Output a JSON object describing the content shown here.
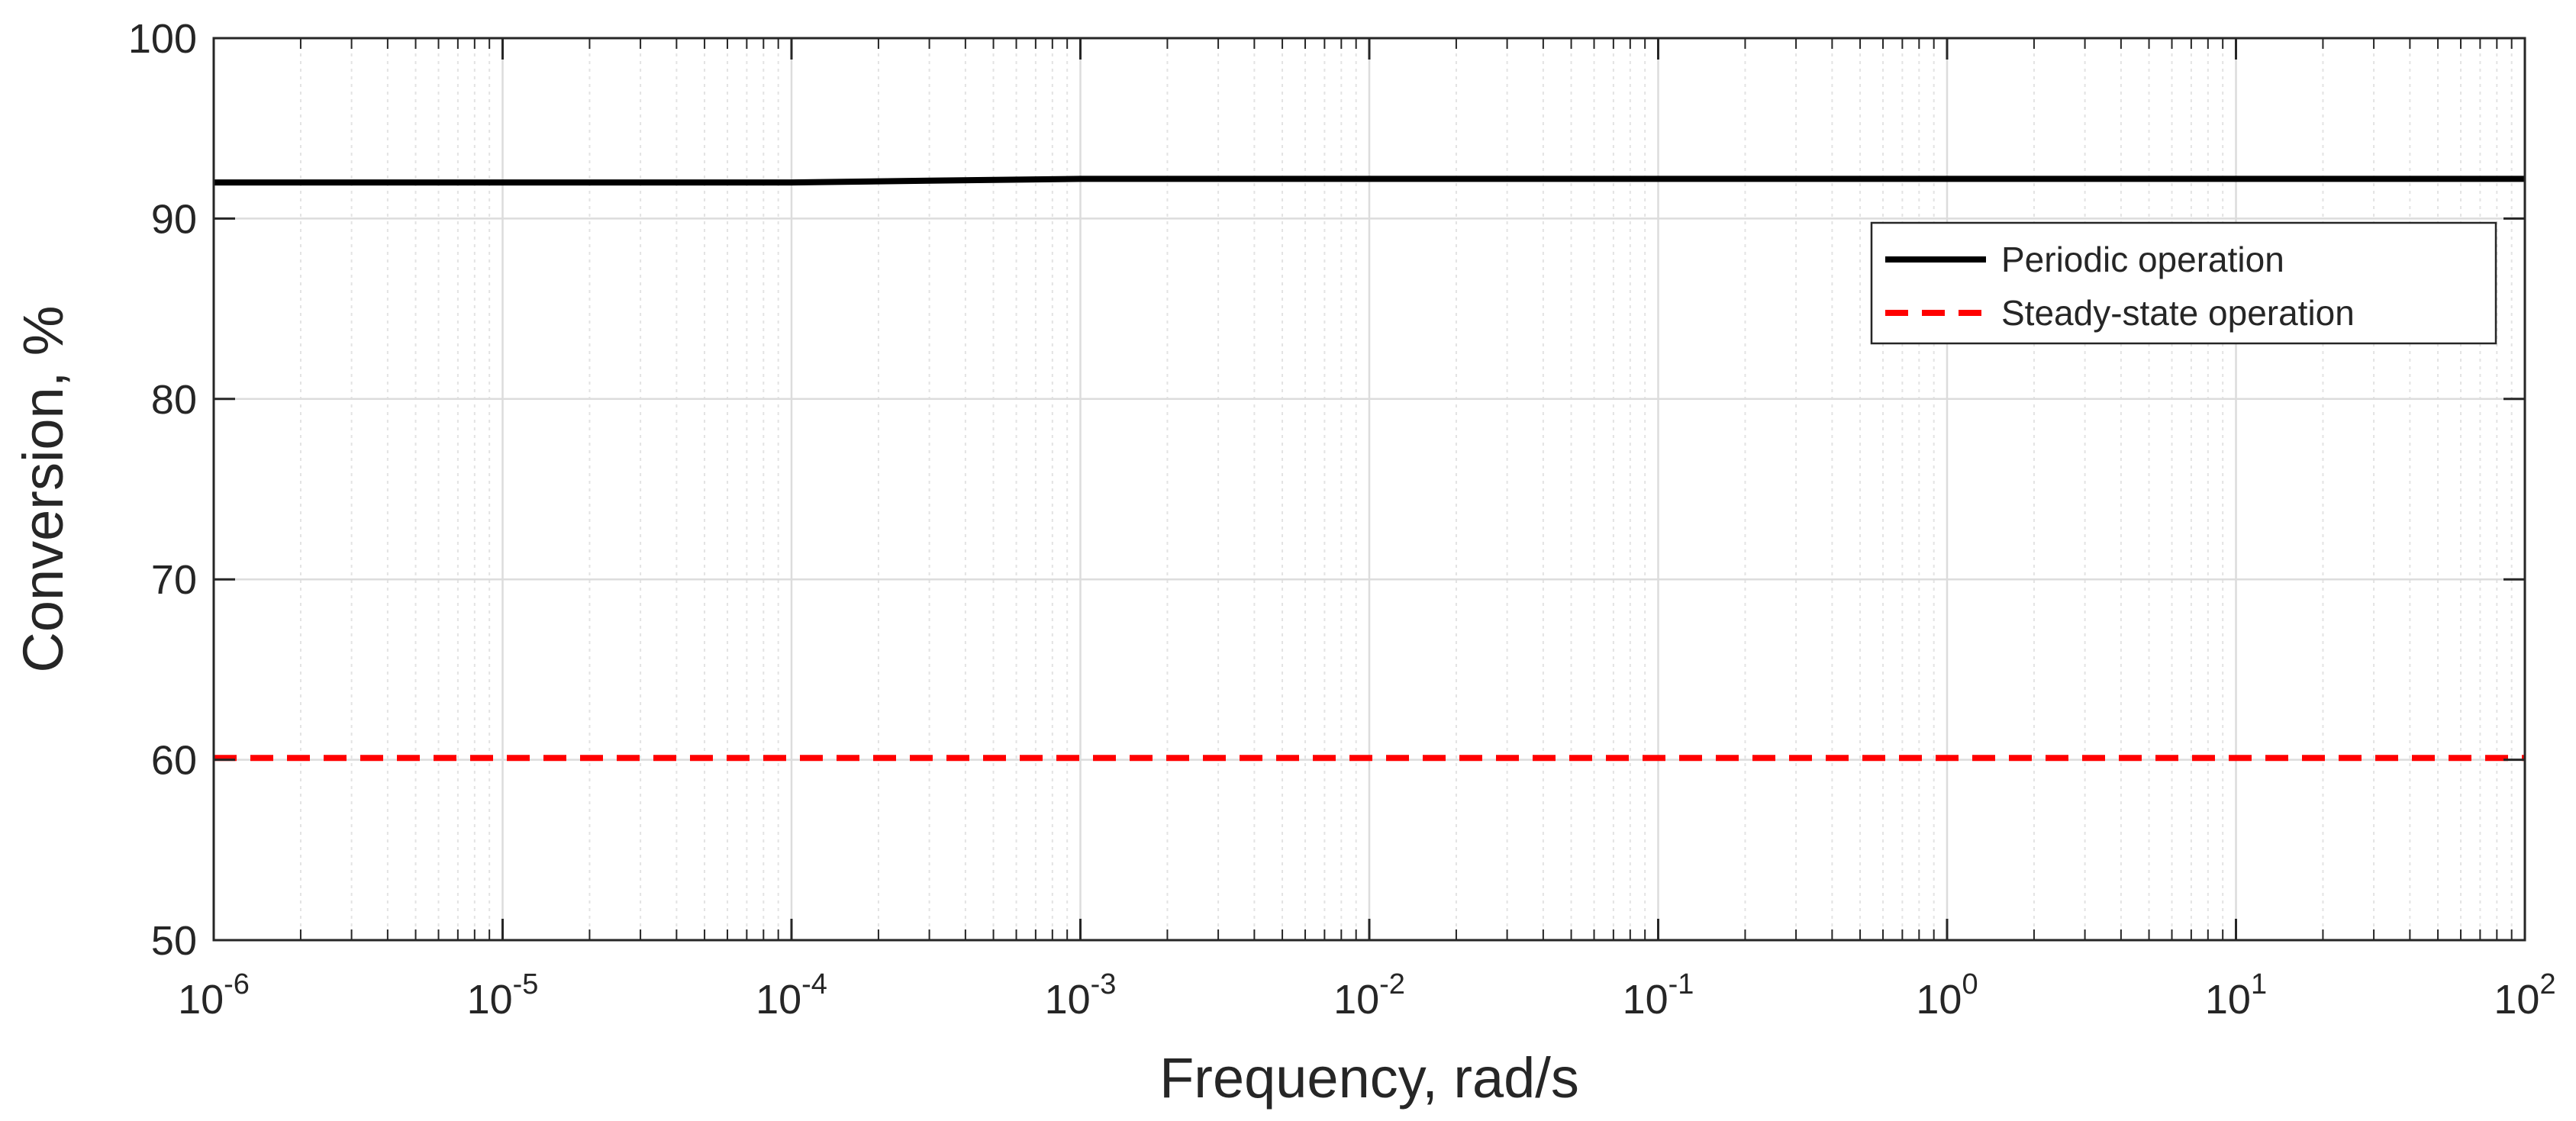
{
  "chart_data": {
    "type": "line",
    "x_scale": "log",
    "xlabel": "Frequency, rad/s",
    "ylabel": "Conversion, %",
    "xlim": [
      1e-06,
      100
    ],
    "ylim": [
      50,
      100
    ],
    "grid": true,
    "minor_grid": true,
    "legend_position": "top-right",
    "x_ticks": [
      {
        "base": "10",
        "exp": "-6",
        "value": 1e-06
      },
      {
        "base": "10",
        "exp": "-5",
        "value": 1e-05
      },
      {
        "base": "10",
        "exp": "-4",
        "value": 0.0001
      },
      {
        "base": "10",
        "exp": "-3",
        "value": 0.001
      },
      {
        "base": "10",
        "exp": "-2",
        "value": 0.01
      },
      {
        "base": "10",
        "exp": "-1",
        "value": 0.1
      },
      {
        "base": "10",
        "exp": "0",
        "value": 1
      },
      {
        "base": "10",
        "exp": "1",
        "value": 10
      },
      {
        "base": "10",
        "exp": "2",
        "value": 100
      }
    ],
    "y_ticks": [
      50,
      60,
      70,
      80,
      90,
      100
    ],
    "series": [
      {
        "name": "Periodic operation",
        "color": "#000000",
        "style": "solid",
        "x": [
          1e-06,
          1e-05,
          0.0001,
          0.0003,
          0.001,
          0.01,
          0.1,
          1,
          10,
          100
        ],
        "y": [
          92.0,
          92.0,
          92.0,
          92.1,
          92.2,
          92.2,
          92.2,
          92.2,
          92.2,
          92.2
        ]
      },
      {
        "name": "Steady-state operation",
        "color": "#ff0000",
        "style": "dashed",
        "x": [
          1e-06,
          100
        ],
        "y": [
          60.1,
          60.1
        ]
      }
    ]
  }
}
